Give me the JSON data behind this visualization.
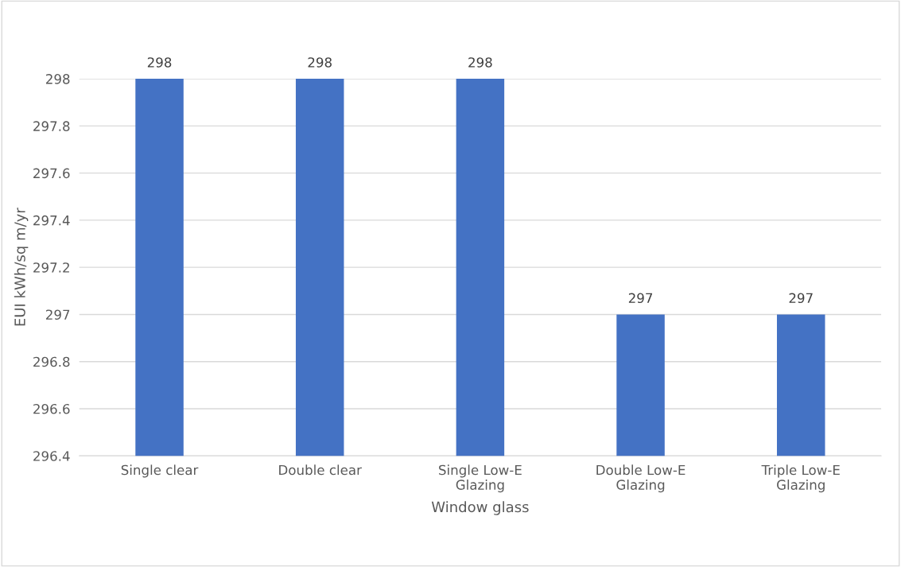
{
  "chart_data": {
    "type": "bar",
    "categories": [
      "Single clear",
      "Double clear",
      "Single Low-E\nGlazing",
      "Double Low-E\nGlazing",
      "Triple Low-E\nGlazing"
    ],
    "values": [
      298,
      298,
      298,
      297,
      297
    ],
    "color": "#4472c4",
    "xlabel": "Window glass",
    "ylabel": "EUI kWh/sq m/yr",
    "ylim": [
      296.4,
      298
    ],
    "yticks": [
      296.4,
      296.6,
      296.8,
      297,
      297.2,
      297.4,
      297.6,
      297.8,
      298
    ],
    "grid": "y",
    "data_labels": true
  }
}
